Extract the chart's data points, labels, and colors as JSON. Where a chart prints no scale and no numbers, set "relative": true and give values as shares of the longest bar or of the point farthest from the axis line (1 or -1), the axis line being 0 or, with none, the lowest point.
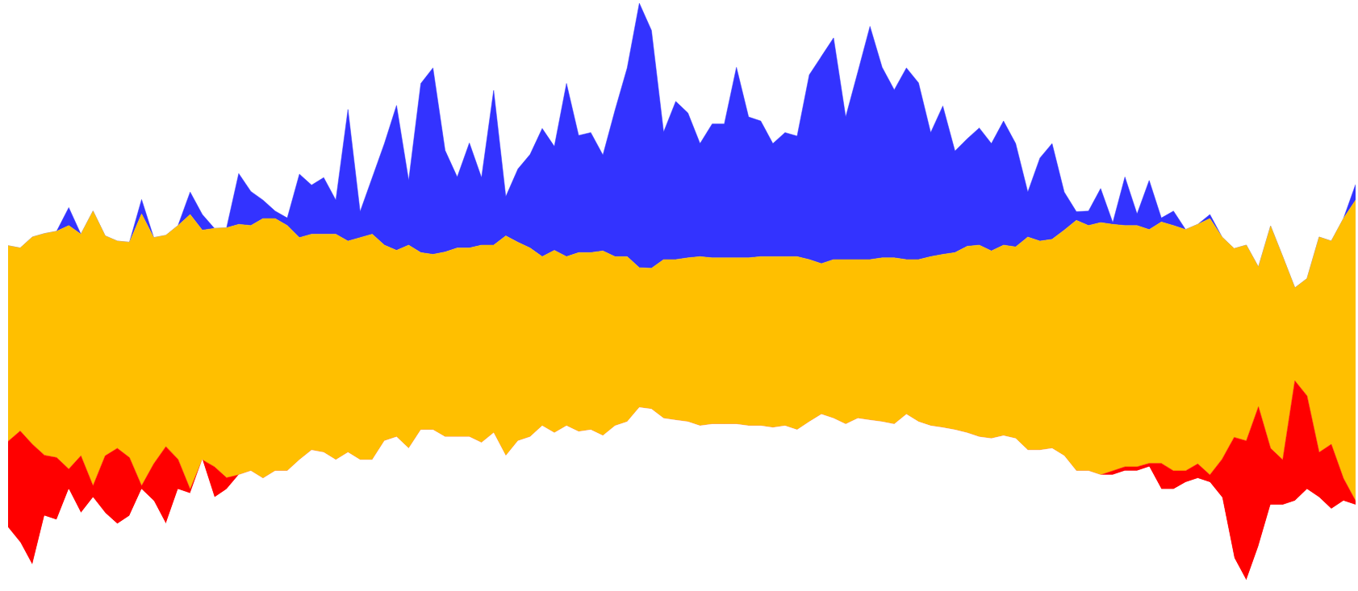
{
  "chart_data": {
    "type": "area",
    "relative": true,
    "stacked": true,
    "categories": [
      null,
      null,
      null,
      null,
      null,
      null,
      null,
      null,
      null,
      null,
      null,
      null,
      null,
      null,
      null,
      null,
      null,
      null,
      null,
      null,
      null,
      null,
      null,
      null,
      null,
      null,
      null,
      null,
      null,
      null,
      null,
      null,
      null,
      null,
      null,
      null,
      null,
      null,
      null,
      null,
      null,
      null,
      null,
      null,
      null,
      null,
      null,
      null,
      null,
      null,
      null,
      null,
      null,
      null,
      null,
      null,
      null,
      null,
      null,
      null,
      null,
      null,
      null,
      null,
      null,
      null,
      null,
      null,
      null,
      null,
      null,
      null,
      null,
      null,
      null,
      null,
      null,
      null,
      null,
      null,
      null,
      null,
      null,
      null,
      null,
      null,
      null,
      null,
      null,
      null,
      null,
      null,
      null,
      null,
      null,
      null,
      null,
      null,
      null,
      null,
      null,
      null,
      null,
      null,
      null,
      null,
      null,
      null,
      null,
      null,
      null,
      null
    ],
    "series": [
      {
        "color": "#ffffff",
        "values": [
          0.092,
          0.066,
          0.027,
          0.112,
          0.105,
          0.158,
          0.117,
          0.144,
          0.117,
          0.098,
          0.112,
          0.158,
          0.138,
          0.098,
          0.158,
          0.151,
          0.209,
          0.144,
          0.158,
          0.183,
          0.19,
          0.177,
          0.19,
          0.19,
          0.209,
          0.226,
          0.222,
          0.209,
          0.222,
          0.209,
          0.209,
          0.242,
          0.249,
          0.229,
          0.261,
          0.261,
          0.249,
          0.249,
          0.249,
          0.239,
          0.256,
          0.216,
          0.242,
          0.249,
          0.268,
          0.256,
          0.268,
          0.258,
          0.261,
          0.251,
          0.268,
          0.275,
          0.3,
          0.297,
          0.281,
          0.278,
          0.275,
          0.268,
          0.271,
          0.271,
          0.271,
          0.268,
          0.268,
          0.265,
          0.268,
          0.261,
          0.275,
          0.288,
          0.281,
          0.271,
          0.281,
          0.278,
          0.275,
          0.271,
          0.288,
          0.275,
          0.268,
          0.265,
          0.261,
          0.256,
          0.249,
          0.246,
          0.251,
          0.246,
          0.226,
          0.226,
          0.229,
          0.216,
          0.19,
          0.19,
          0.183,
          0.183,
          0.19,
          0.19,
          0.197,
          0.158,
          0.158,
          0.17,
          0.177,
          0.17,
          0.144,
          0.039,
          0,
          0.059,
          0.131,
          0.131,
          0.138,
          0.158,
          0.144,
          0.124,
          0.138,
          0.131
        ]
      },
      {
        "color": "#ff0000",
        "values": [
          0.149,
          0.193,
          0.209,
          0.105,
          0.108,
          0.035,
          0.099,
          0.02,
          0.099,
          0.131,
          0.101,
          0.006,
          0.064,
          0.134,
          0.052,
          0.007,
          0,
          0.053,
          0.02,
          0,
          0,
          0,
          0,
          0,
          0,
          0,
          0,
          0,
          0,
          0,
          0,
          0,
          0,
          0,
          0,
          0,
          0,
          0,
          0,
          0,
          0,
          0,
          0,
          0,
          0,
          0,
          0,
          0,
          0,
          0,
          0,
          0,
          0,
          0,
          0,
          0,
          0,
          0,
          0,
          0,
          0,
          0,
          0,
          0,
          0,
          0,
          0,
          0,
          0,
          0,
          0,
          0,
          0,
          0,
          0,
          0,
          0,
          0,
          0,
          0,
          0,
          0,
          0,
          0,
          0,
          0,
          0,
          0,
          0,
          0,
          0,
          0.007,
          0.007,
          0.007,
          0.006,
          0.045,
          0.032,
          0.02,
          0.025,
          0.013,
          0.066,
          0.209,
          0.242,
          0.242,
          0.098,
          0.078,
          0.208,
          0.162,
          0.078,
          0.112,
          0.039,
          0.007
        ]
      },
      {
        "color": "#ffbf00",
        "values": [
          0.339,
          0.317,
          0.359,
          0.384,
          0.392,
          0.422,
          0.384,
          0.476,
          0.381,
          0.359,
          0.373,
          0.471,
          0.392,
          0.366,
          0.405,
          0.476,
          0.398,
          0.413,
          0.433,
          0.434,
          0.425,
          0.45,
          0.437,
          0.425,
          0.385,
          0.374,
          0.378,
          0.391,
          0.366,
          0.385,
          0.391,
          0.339,
          0.323,
          0.352,
          0.307,
          0.304,
          0.32,
          0.327,
          0.327,
          0.342,
          0.325,
          0.381,
          0.344,
          0.327,
          0.293,
          0.316,
          0.293,
          0.31,
          0.307,
          0.32,
          0.293,
          0.286,
          0.242,
          0.244,
          0.275,
          0.278,
          0.284,
          0.293,
          0.288,
          0.288,
          0.288,
          0.291,
          0.293,
          0.296,
          0.293,
          0.3,
          0.281,
          0.261,
          0.275,
          0.285,
          0.275,
          0.278,
          0.284,
          0.288,
          0.268,
          0.281,
          0.293,
          0.3,
          0.307,
          0.323,
          0.332,
          0.325,
          0.33,
          0.332,
          0.369,
          0.362,
          0.362,
          0.391,
          0.434,
          0.425,
          0.437,
          0.427,
          0.418,
          0.418,
          0.405,
          0.418,
          0.425,
          0.418,
          0.415,
          0.444,
          0.385,
          0.327,
          0.339,
          0.242,
          0.385,
          0.352,
          0.161,
          0.203,
          0.373,
          0.352,
          0.45,
          0.521
        ]
      },
      {
        "color": "#3333ff",
        "values": [
          0,
          0,
          0,
          0,
          0,
          0.031,
          0,
          0,
          0,
          0,
          0,
          0.025,
          0,
          0,
          0,
          0.039,
          0.027,
          0,
          0,
          0.088,
          0.059,
          0.032,
          0.013,
          0.013,
          0.11,
          0.085,
          0.098,
          0.059,
          0.228,
          0.045,
          0.098,
          0.176,
          0.251,
          0.112,
          0.293,
          0.323,
          0.176,
          0.123,
          0.182,
          0.117,
          0.268,
          0.068,
          0.127,
          0.162,
          0.222,
          0.18,
          0.3,
          0.203,
          0.208,
          0.166,
          0.254,
          0.327,
          0.458,
          0.412,
          0.221,
          0.274,
          0.251,
          0.196,
          0.232,
          0.232,
          0.33,
          0.244,
          0.235,
          0.196,
          0.215,
          0.209,
          0.32,
          0.359,
          0.384,
          0.247,
          0.325,
          0.404,
          0.33,
          0.291,
          0.332,
          0.306,
          0.215,
          0.257,
          0.176,
          0.186,
          0.203,
          0.186,
          0.215,
          0.179,
          0.078,
          0.144,
          0.166,
          0.066,
          0.015,
          0.025,
          0.059,
          0.003,
          0.084,
          0.02,
          0.085,
          0.007,
          0.025,
          0,
          0,
          0.007,
          0,
          0,
          0,
          0,
          0,
          0,
          0,
          0,
          0,
          0,
          0,
          0.027
        ]
      }
    ]
  }
}
